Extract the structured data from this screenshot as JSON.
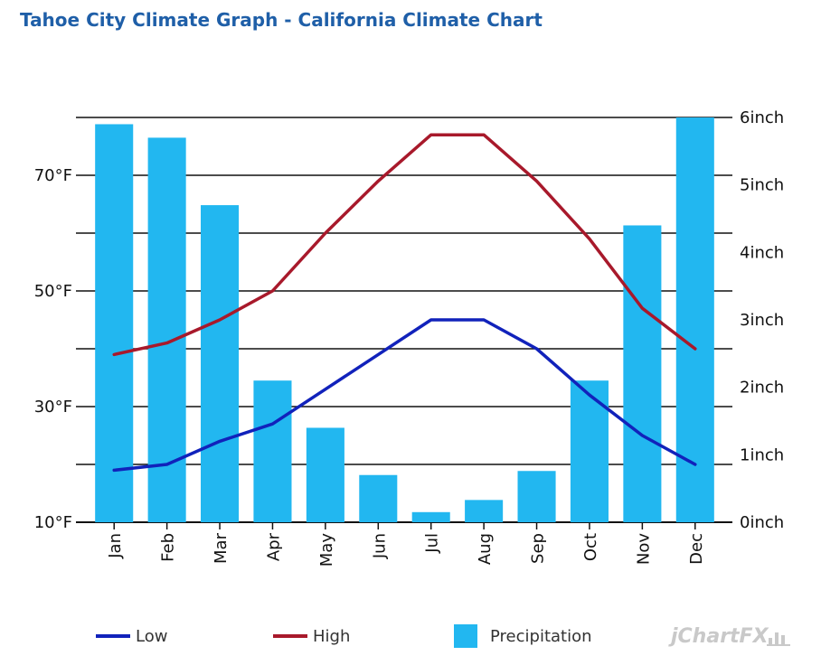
{
  "page": {
    "title": "Tahoe City Climate Graph - California Climate Chart",
    "watermark": "jChartFX"
  },
  "legend": {
    "low": "Low",
    "high": "High",
    "precip": "Precipitation"
  },
  "colors": {
    "low": "#1122bb",
    "high": "#a8192b",
    "precip": "#22b7f0",
    "title": "#1f5fa8"
  },
  "chart_data": {
    "type": "bar",
    "title": "Tahoe City Climate Graph - California Climate Chart",
    "categories": [
      "Jan",
      "Feb",
      "Mar",
      "Apr",
      "May",
      "Jun",
      "Jul",
      "Aug",
      "Sep",
      "Oct",
      "Nov",
      "Dec"
    ],
    "y_left": {
      "ticks": [
        "10°F",
        "30°F",
        "50°F",
        "70°F"
      ],
      "range": [
        10,
        80
      ]
    },
    "y_right": {
      "ticks": [
        "0inch",
        "1inch",
        "2inch",
        "3inch",
        "4inch",
        "5inch",
        "6inch"
      ],
      "range": [
        0,
        6
      ]
    },
    "series": [
      {
        "name": "Precipitation",
        "type": "bar",
        "axis": "right",
        "values": [
          5.9,
          5.7,
          4.7,
          2.1,
          1.4,
          0.7,
          0.15,
          0.33,
          0.76,
          2.1,
          4.4,
          6.0
        ]
      },
      {
        "name": "High",
        "type": "line",
        "axis": "left",
        "values": [
          39,
          41,
          45,
          50,
          60,
          69,
          77,
          77,
          69,
          59,
          47,
          40
        ]
      },
      {
        "name": "Low",
        "type": "line",
        "axis": "left",
        "values": [
          19,
          20,
          24,
          27,
          33,
          39,
          45,
          45,
          40,
          32,
          25,
          20
        ]
      }
    ],
    "grid": true,
    "legend_position": "bottom"
  }
}
